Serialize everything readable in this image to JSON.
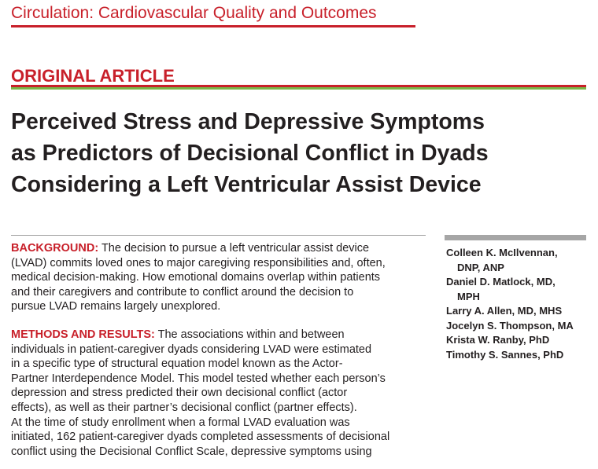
{
  "journal": "Circulation: Cardiovascular Quality and Outcomes",
  "article_type": "ORIGINAL ARTICLE",
  "title_lines": [
    "Perceived Stress and Depressive Symptoms",
    "as Predictors of Decisional Conflict in Dyads",
    "Considering a Left Ventricular Assist Device"
  ],
  "abstract": [
    {
      "label": "BACKGROUND:",
      "lines": [
        "The decision to pursue a left ventricular assist device",
        "(LVAD) commits loved ones to major caregiving responsibilities and, often,",
        "medical decision-making. How emotional domains overlap within patients",
        "and their caregivers and contribute to conflict around the decision to",
        "pursue LVAD remains largely unexplored."
      ]
    },
    {
      "label": "METHODS AND RESULTS:",
      "lines": [
        "The associations within and between",
        "individuals in patient-caregiver dyads considering LVAD were estimated",
        "in a specific type of structural equation model known as the Actor-",
        "Partner Interdependence Model. This model tested whether each person’s",
        "depression and stress predicted their own decisional conflict (actor",
        "effects), as well as their partner’s decisional conflict (partner effects).",
        "At the time of study enrollment when a formal LVAD evaluation was",
        "initiated, 162 patient-caregiver dyads completed assessments of decisional",
        "conflict using the Decisional Conflict Scale, depressive symptoms using"
      ]
    }
  ],
  "authors": [
    {
      "lines": [
        "Colleen K. McIlvennan,",
        "DNP, ANP"
      ]
    },
    {
      "lines": [
        "Daniel D. Matlock, MD,",
        "MPH"
      ]
    },
    {
      "lines": [
        "Larry A. Allen, MD, MHS"
      ]
    },
    {
      "lines": [
        "Jocelyn S. Thompson, MA"
      ]
    },
    {
      "lines": [
        "Krista W. Ranby, PhD"
      ]
    },
    {
      "lines": [
        "Timothy S. Sannes, PhD"
      ]
    }
  ]
}
